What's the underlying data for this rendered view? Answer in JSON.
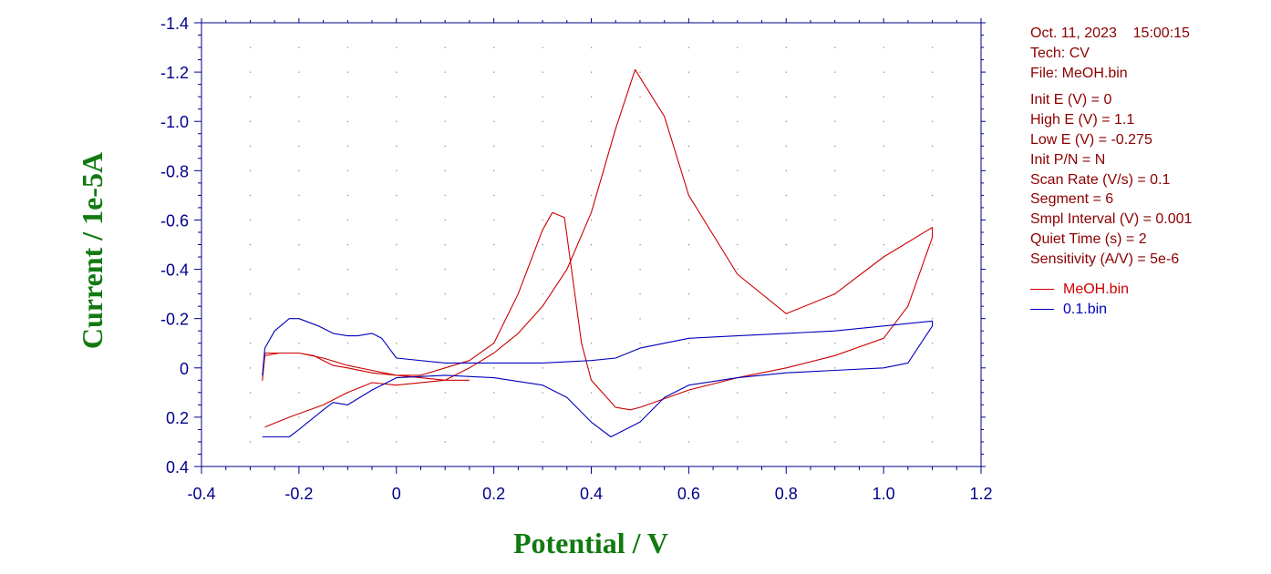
{
  "info": {
    "date": "Oct. 11, 2023",
    "time": "15:00:15",
    "tech": "Tech: CV",
    "file": "File: MeOH.bin",
    "params": [
      "Init E (V) = 0",
      "High E (V) = 1.1",
      "Low E (V) = -0.275",
      "Init P/N = N",
      "Scan Rate (V/s) = 0.1",
      "Segment = 6",
      "Smpl Interval (V) = 0.001",
      "Quiet Time (s) = 2",
      "Sensitivity (A/V) = 5e-6"
    ]
  },
  "colors": {
    "axis": "#00008b",
    "title": "#117a11",
    "info": "#8b0000",
    "grid": "#7f7f7f"
  },
  "chart_data": {
    "type": "line",
    "xlabel": "Potential / V",
    "ylabel": "Current / 1e-5A",
    "xlim": [
      -0.4,
      1.2
    ],
    "ylim": [
      -1.4,
      0.4
    ],
    "y_inverted": true,
    "xticks": [
      "-0.4",
      "-0.2",
      "0",
      "0.2",
      "0.4",
      "0.6",
      "0.8",
      "1.0",
      "1.2"
    ],
    "xtick_values": [
      -0.4,
      -0.2,
      0,
      0.2,
      0.4,
      0.6,
      0.8,
      1.0,
      1.2
    ],
    "yticks": [
      "-1.4",
      "-1.2",
      "-1.0",
      "-0.8",
      "-0.6",
      "-0.4",
      "-0.2",
      "0",
      "0.2",
      "0.4"
    ],
    "ytick_values": [
      -1.4,
      -1.2,
      -1.0,
      -0.8,
      -0.6,
      -0.4,
      -0.2,
      0,
      0.2,
      0.4
    ],
    "grid": "dotted",
    "legend_position": "right",
    "series": [
      {
        "name": "MeOH.bin",
        "color": "#cc0000",
        "x": [
          -0.27,
          -0.22,
          -0.15,
          -0.1,
          -0.05,
          0.0,
          0.1,
          0.15,
          0.2,
          0.25,
          0.3,
          0.35,
          0.4,
          0.45,
          0.49,
          0.55,
          0.6,
          0.7,
          0.8,
          0.9,
          1.0,
          1.1,
          1.1,
          1.05,
          1.0,
          0.9,
          0.8,
          0.7,
          0.6,
          0.5,
          0.48,
          0.45,
          0.4,
          0.38,
          0.345,
          0.32,
          0.3,
          0.25,
          0.2,
          0.15,
          0.1,
          0.05,
          0.0,
          -0.05,
          -0.1,
          -0.15,
          -0.2,
          -0.27,
          -0.275,
          -0.27,
          -0.24,
          -0.2,
          -0.17,
          -0.15,
          -0.13,
          -0.1,
          -0.05,
          0.0,
          0.05,
          0.1,
          0.15
        ],
        "y": [
          0.24,
          0.2,
          0.15,
          0.1,
          0.06,
          0.07,
          0.05,
          0.0,
          -0.06,
          -0.14,
          -0.25,
          -0.4,
          -0.63,
          -0.97,
          -1.21,
          -1.02,
          -0.7,
          -0.38,
          -0.22,
          -0.3,
          -0.45,
          -0.57,
          -0.53,
          -0.25,
          -0.12,
          -0.05,
          0.0,
          0.04,
          0.09,
          0.16,
          0.17,
          0.16,
          0.05,
          -0.1,
          -0.61,
          -0.63,
          -0.56,
          -0.3,
          -0.1,
          -0.03,
          0.0,
          0.03,
          0.03,
          0.01,
          -0.01,
          -0.04,
          -0.06,
          -0.06,
          0.05,
          -0.05,
          -0.06,
          -0.06,
          -0.05,
          -0.03,
          -0.01,
          0.0,
          0.02,
          0.03,
          0.04,
          0.05,
          0.05
        ]
      },
      {
        "name": "0.1.bin",
        "color": "#0000bb",
        "x": [
          -0.275,
          -0.24,
          -0.22,
          -0.2,
          -0.15,
          -0.13,
          -0.1,
          -0.05,
          0.0,
          0.1,
          0.2,
          0.3,
          0.35,
          0.4,
          0.44,
          0.5,
          0.55,
          0.6,
          0.7,
          0.8,
          0.9,
          1.0,
          1.05,
          1.1,
          1.1,
          1.0,
          0.9,
          0.8,
          0.7,
          0.6,
          0.5,
          0.45,
          0.4,
          0.3,
          0.2,
          0.1,
          0.0,
          -0.03,
          -0.05,
          -0.08,
          -0.1,
          -0.13,
          -0.16,
          -0.2,
          -0.22,
          -0.25,
          -0.27,
          -0.275
        ],
        "y": [
          0.28,
          0.28,
          0.28,
          0.25,
          0.17,
          0.14,
          0.15,
          0.09,
          0.04,
          0.03,
          0.04,
          0.07,
          0.12,
          0.22,
          0.28,
          0.22,
          0.12,
          0.07,
          0.04,
          0.02,
          0.01,
          0.0,
          -0.02,
          -0.17,
          -0.19,
          -0.17,
          -0.15,
          -0.14,
          -0.13,
          -0.12,
          -0.08,
          -0.04,
          -0.03,
          -0.02,
          -0.02,
          -0.02,
          -0.04,
          -0.12,
          -0.14,
          -0.13,
          -0.13,
          -0.14,
          -0.17,
          -0.2,
          -0.2,
          -0.15,
          -0.08,
          0.03
        ]
      }
    ]
  }
}
